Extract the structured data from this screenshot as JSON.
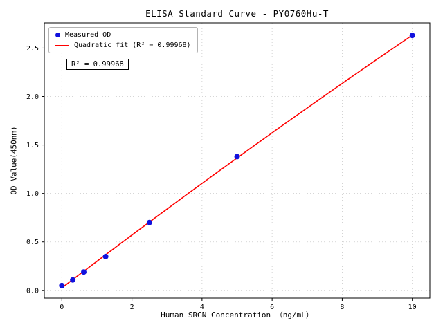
{
  "chart_data": {
    "type": "scatter",
    "title": "ELISA Standard Curve - PY0760Hu-T",
    "xlabel": "Human SRGN Concentration （ng/mL）",
    "ylabel": "OD Value(450nm)",
    "x": [
      0,
      0.3125,
      0.625,
      1.25,
      2.5,
      5,
      10
    ],
    "y": [
      0.049,
      0.108,
      0.19,
      0.349,
      0.7,
      1.38,
      2.63
    ],
    "series": [
      {
        "name": "Measured OD",
        "kind": "scatter"
      },
      {
        "name": "Quadratic fit (R² = 0.99968)",
        "kind": "line",
        "fit": "quadratic"
      }
    ],
    "annotation": "R² = 0.99968",
    "r_squared": 0.99968,
    "xlim": [
      -0.5,
      10.5
    ],
    "ylim": [
      -0.08,
      2.76
    ],
    "xticks": [
      0,
      2,
      4,
      6,
      8,
      10
    ],
    "yticks": [
      0.0,
      0.5,
      1.0,
      1.5,
      2.0,
      2.5
    ],
    "grid": true,
    "legend_position": "upper left",
    "colors": {
      "points": "#1111dd",
      "fit_line": "#ff0000",
      "grid": "#c9c9c9",
      "frame": "#000000"
    }
  }
}
